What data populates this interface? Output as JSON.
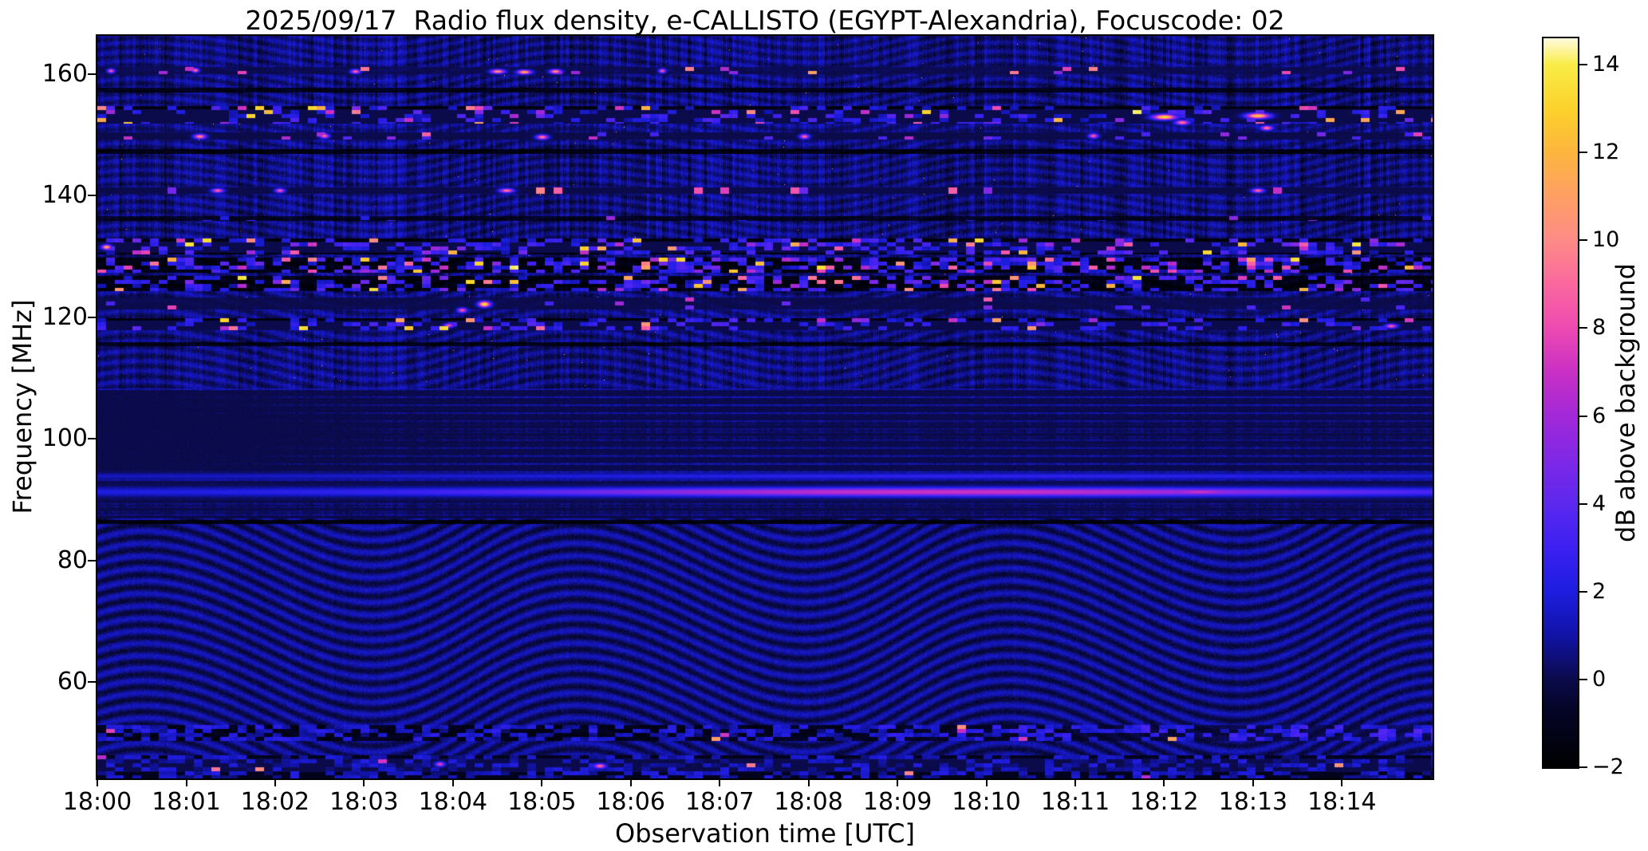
{
  "figure": {
    "background": "#ffffff"
  },
  "chart_data": {
    "type": "heatmap",
    "subtype": "radio-spectrogram",
    "title": "2025/09/17  Radio flux density, e-CALLISTO (EGYPT-Alexandria), Focuscode: 02",
    "xlabel": "Observation time [UTC]",
    "ylabel": "Frequency [MHz]",
    "x_ticks": [
      "18:00",
      "18:01",
      "18:02",
      "18:03",
      "18:04",
      "18:05",
      "18:06",
      "18:07",
      "18:08",
      "18:09",
      "18:10",
      "18:11",
      "18:12",
      "18:13",
      "18:14"
    ],
    "x_span_minutes": 15.02,
    "y_ticks": [
      160,
      140,
      120,
      100,
      80,
      60
    ],
    "y_range": [
      44.1,
      166.3
    ],
    "grid": false,
    "colorbar": {
      "label": "dB above background",
      "ticks": [
        14,
        12,
        10,
        8,
        6,
        4,
        2,
        0,
        -2
      ],
      "range": [
        -2,
        14.6
      ],
      "colormap": "gnuplot2-like",
      "stops": [
        [
          -2,
          "#000000"
        ],
        [
          -0.6,
          "#05052a"
        ],
        [
          0,
          "#0b0b4c"
        ],
        [
          1,
          "#1113a6"
        ],
        [
          2,
          "#1d1ddf"
        ],
        [
          3,
          "#3c20f2"
        ],
        [
          4,
          "#5c28ee"
        ],
        [
          5,
          "#7f28e6"
        ],
        [
          6,
          "#a228d8"
        ],
        [
          7,
          "#c930c4"
        ],
        [
          8,
          "#ee4ab2"
        ],
        [
          9,
          "#fa689e"
        ],
        [
          10,
          "#fd8b86"
        ],
        [
          11,
          "#fe9f64"
        ],
        [
          12,
          "#fdb53e"
        ],
        [
          13,
          "#fbd22a"
        ],
        [
          14,
          "#f9ec48"
        ],
        [
          14.6,
          "#fffbe0"
        ]
      ]
    },
    "background_pattern": {
      "base_db": 0.55,
      "moire_amp_low": 0.85,
      "moire_amp_mid": 0.55,
      "moire_amp_upper": 0.5,
      "upper_dot_prob": 0.00045
    },
    "rfi_bands": [
      {
        "hi": 161.2,
        "lo": 160.1,
        "type": "speckle",
        "density": 0.045,
        "bmin": 5,
        "bmax": 12,
        "dark": -0.2,
        "seed": 1
      },
      {
        "hi": 157.8,
        "lo": 157.1,
        "type": "darkline",
        "s": 1.1,
        "seed": 2
      },
      {
        "hi": 154.8,
        "lo": 151.9,
        "type": "busy",
        "pb": 0.085,
        "pm": 0.22,
        "dark": -1.4,
        "seed": 3
      },
      {
        "hi": 150.5,
        "lo": 149.3,
        "type": "speckle",
        "density": 0.1,
        "bmin": 3,
        "bmax": 10,
        "dark": -0.6,
        "seed": 4
      },
      {
        "hi": 147.7,
        "lo": 146.9,
        "type": "darkline",
        "s": 1.4,
        "seed": 5
      },
      {
        "hi": 141.4,
        "lo": 140.4,
        "type": "darkline",
        "s": 1.9,
        "density": 0.05,
        "bmin": 4,
        "bmax": 10,
        "seed": 6
      },
      {
        "hi": 136.7,
        "lo": 135.9,
        "type": "speckle",
        "density": 0.05,
        "bmin": 2,
        "bmax": 6,
        "dark": -0.9,
        "seed": 7
      },
      {
        "hi": 133.0,
        "lo": 130.4,
        "type": "busy",
        "pb": 0.11,
        "pm": 0.26,
        "dark": -1.6,
        "seed": 8
      },
      {
        "hi": 129.9,
        "lo": 127.4,
        "type": "busy",
        "pb": 0.15,
        "pm": 0.33,
        "dark": -1.4,
        "seed": 9
      },
      {
        "hi": 126.9,
        "lo": 124.4,
        "type": "busy",
        "pb": 0.13,
        "pm": 0.3,
        "dark": -1.4,
        "seed": 10
      },
      {
        "hi": 123.3,
        "lo": 121.4,
        "type": "speckle",
        "density": 0.04,
        "bmin": 3,
        "bmax": 9,
        "dark": -0.3,
        "seed": 11
      },
      {
        "hi": 119.9,
        "lo": 117.9,
        "type": "busy",
        "pb": 0.06,
        "pm": 0.22,
        "dark": -1.6,
        "seed": 12
      },
      {
        "hi": 116.0,
        "lo": 115.3,
        "type": "darkline",
        "s": 1.2,
        "seed": 13
      },
      {
        "hi": 108.3,
        "lo": 86.9,
        "type": "fm",
        "seed": 14
      },
      {
        "hi": 86.7,
        "lo": 86.1,
        "type": "darkline",
        "s": 1.6,
        "seed": 15
      },
      {
        "hi": 52.9,
        "lo": 50.4,
        "type": "bottom",
        "seed": 16
      },
      {
        "hi": 48.0,
        "lo": 44.1,
        "type": "bottom2",
        "seed": 17
      }
    ],
    "fm_lines": [
      {
        "f": 91.3,
        "w": 0.5,
        "base": 2.0,
        "peak": 5.2,
        "t0": 9.6,
        "sig": 3.4
      },
      {
        "f": 93.9,
        "w": 0.35,
        "base": 1.4,
        "peak": 1.2,
        "t0": 10,
        "sig": 4
      }
    ],
    "bright_spots": [
      {
        "t": 0.15,
        "f": 160.6,
        "a": 9,
        "sx": 3,
        "sy": 1.8
      },
      {
        "t": 1.1,
        "f": 160.7,
        "a": 10,
        "sx": 3,
        "sy": 1.8
      },
      {
        "t": 2.9,
        "f": 160.5,
        "a": 9.5,
        "sx": 4,
        "sy": 1.8
      },
      {
        "t": 4.5,
        "f": 160.5,
        "a": 11,
        "sx": 6,
        "sy": 1.8
      },
      {
        "t": 4.8,
        "f": 160.4,
        "a": 12,
        "sx": 6,
        "sy": 1.8
      },
      {
        "t": 5.15,
        "f": 160.5,
        "a": 11,
        "sx": 5,
        "sy": 1.8
      },
      {
        "t": 6.35,
        "f": 160.6,
        "a": 9,
        "sx": 3,
        "sy": 1.8
      },
      {
        "t": 12.0,
        "f": 153.0,
        "a": 13.5,
        "sx": 10,
        "sy": 2.3
      },
      {
        "t": 12.2,
        "f": 152.1,
        "a": 10,
        "sx": 6,
        "sy": 2
      },
      {
        "t": 13.05,
        "f": 153.2,
        "a": 13,
        "sx": 10,
        "sy": 2.3
      },
      {
        "t": 13.15,
        "f": 151.2,
        "a": 10,
        "sx": 5,
        "sy": 2
      },
      {
        "t": 1.15,
        "f": 149.8,
        "a": 10.5,
        "sx": 5,
        "sy": 2
      },
      {
        "t": 2.55,
        "f": 149.9,
        "a": 9.5,
        "sx": 4,
        "sy": 2
      },
      {
        "t": 5.0,
        "f": 149.7,
        "a": 10,
        "sx": 5,
        "sy": 2
      },
      {
        "t": 7.95,
        "f": 149.8,
        "a": 9.5,
        "sx": 4,
        "sy": 2
      },
      {
        "t": 11.2,
        "f": 149.9,
        "a": 9,
        "sx": 4,
        "sy": 2
      },
      {
        "t": 1.35,
        "f": 140.9,
        "a": 9.5,
        "sx": 5,
        "sy": 1.8
      },
      {
        "t": 2.05,
        "f": 140.9,
        "a": 9,
        "sx": 4,
        "sy": 1.8
      },
      {
        "t": 4.6,
        "f": 140.9,
        "a": 10,
        "sx": 6,
        "sy": 1.8
      },
      {
        "t": 13.05,
        "f": 140.9,
        "a": 9.5,
        "sx": 5,
        "sy": 1.8
      },
      {
        "t": 4.35,
        "f": 122.2,
        "a": 14.2,
        "sx": 5,
        "sy": 2.4
      },
      {
        "t": 4.1,
        "f": 121.2,
        "a": 9,
        "sx": 4,
        "sy": 2
      },
      {
        "t": 0.1,
        "f": 131.6,
        "a": 12,
        "sx": 4,
        "sy": 2
      },
      {
        "t": 3.95,
        "f": 118.7,
        "a": 8.5,
        "sx": 4,
        "sy": 1.8
      },
      {
        "t": 14.55,
        "f": 118.6,
        "a": 9,
        "sx": 5,
        "sy": 1.8
      },
      {
        "t": 5.65,
        "f": 46.2,
        "a": 9.5,
        "sx": 5,
        "sy": 2
      },
      {
        "t": 3.85,
        "f": 46.5,
        "a": 8,
        "sx": 4,
        "sy": 2
      },
      {
        "t": 12.4,
        "f": 91.3,
        "a": 7.2,
        "sx": 40,
        "sy": 2.6
      }
    ]
  }
}
